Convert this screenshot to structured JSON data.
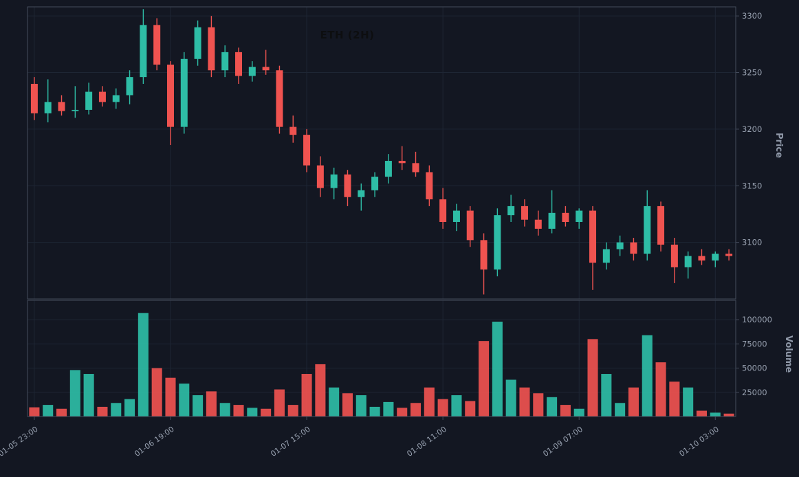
{
  "title": "ETH (2H)",
  "axes": {
    "price_label": "Price",
    "volume_label": "Volume"
  },
  "colors": {
    "background": "#131722",
    "up": "#2ebda6",
    "down": "#ef5350",
    "grid": "#1e2634",
    "border": "#454c5c",
    "tick_label": "#98a1b0",
    "axis_title": "#8f98a8",
    "title_color": "#0d0e10"
  },
  "chart_data": {
    "type": "candlestick",
    "title": "ETH (2H)",
    "legend": "none",
    "grid": "on",
    "x_tick_labels": [
      "01-05 23:00",
      "01-06 19:00",
      "01-07 15:00",
      "01-08 11:00",
      "01-09 07:00",
      "01-10 03:00"
    ],
    "x_tick_indices": [
      0,
      10,
      20,
      30,
      40,
      50
    ],
    "price_ticks": [
      3300,
      3250,
      3200,
      3150,
      3100
    ],
    "volume_ticks": [
      100000,
      75000,
      50000,
      25000
    ],
    "ylim_price": [
      3050,
      3308
    ],
    "ylim_volume": [
      0,
      120000
    ],
    "ohlcv_columns": [
      "time",
      "open",
      "high",
      "low",
      "close",
      "volume"
    ],
    "ohlcv": [
      [
        "01-05 23:00",
        3240,
        3246,
        3208,
        3214,
        9500
      ],
      [
        "01-06 01:00",
        3214,
        3244,
        3206,
        3224,
        12000
      ],
      [
        "01-06 03:00",
        3224,
        3230,
        3212,
        3216,
        8000
      ],
      [
        "01-06 05:00",
        3216,
        3238,
        3210,
        3217,
        48000
      ],
      [
        "01-06 07:00",
        3217,
        3241,
        3213,
        3233,
        44000
      ],
      [
        "01-06 09:00",
        3233,
        3238,
        3220,
        3224,
        10000
      ],
      [
        "01-06 11:00",
        3224,
        3236,
        3218,
        3230,
        14000
      ],
      [
        "01-06 13:00",
        3230,
        3252,
        3222,
        3246,
        18000
      ],
      [
        "01-06 15:00",
        3246,
        3306,
        3240,
        3292,
        107000
      ],
      [
        "01-06 17:00",
        3292,
        3298,
        3252,
        3257,
        50000
      ],
      [
        "01-06 19:00",
        3257,
        3260,
        3186,
        3202,
        40000
      ],
      [
        "01-06 21:00",
        3202,
        3268,
        3196,
        3262,
        34000
      ],
      [
        "01-06 23:00",
        3262,
        3296,
        3256,
        3290,
        22000
      ],
      [
        "01-07 01:00",
        3290,
        3300,
        3246,
        3252,
        26000
      ],
      [
        "01-07 03:00",
        3252,
        3274,
        3246,
        3268,
        14000
      ],
      [
        "01-07 05:00",
        3268,
        3272,
        3240,
        3247,
        12000
      ],
      [
        "01-07 07:00",
        3247,
        3260,
        3242,
        3255,
        9000
      ],
      [
        "01-07 09:00",
        3255,
        3270,
        3248,
        3252,
        8000
      ],
      [
        "01-07 11:00",
        3252,
        3256,
        3196,
        3202,
        28000
      ],
      [
        "01-07 13:00",
        3202,
        3212,
        3188,
        3195,
        12000
      ],
      [
        "01-07 15:00",
        3195,
        3200,
        3162,
        3168,
        44000
      ],
      [
        "01-07 17:00",
        3168,
        3176,
        3140,
        3148,
        54000
      ],
      [
        "01-07 19:00",
        3148,
        3166,
        3138,
        3160,
        30000
      ],
      [
        "01-07 21:00",
        3160,
        3164,
        3132,
        3140,
        24000
      ],
      [
        "01-07 23:00",
        3140,
        3152,
        3128,
        3146,
        22000
      ],
      [
        "01-08 01:00",
        3146,
        3162,
        3140,
        3158,
        10000
      ],
      [
        "01-08 03:00",
        3158,
        3178,
        3152,
        3172,
        15000
      ],
      [
        "01-08 05:00",
        3172,
        3185,
        3164,
        3170,
        9000
      ],
      [
        "01-08 07:00",
        3170,
        3180,
        3158,
        3162,
        14000
      ],
      [
        "01-08 09:00",
        3162,
        3168,
        3132,
        3138,
        30000
      ],
      [
        "01-08 11:00",
        3138,
        3148,
        3112,
        3118,
        18000
      ],
      [
        "01-08 13:00",
        3118,
        3134,
        3110,
        3128,
        22000
      ],
      [
        "01-08 15:00",
        3128,
        3132,
        3096,
        3102,
        16000
      ],
      [
        "01-08 17:00",
        3102,
        3108,
        3054,
        3076,
        78000
      ],
      [
        "01-08 19:00",
        3076,
        3130,
        3070,
        3124,
        98000
      ],
      [
        "01-08 21:00",
        3124,
        3142,
        3118,
        3132,
        38000
      ],
      [
        "01-08 23:00",
        3132,
        3138,
        3114,
        3120,
        30000
      ],
      [
        "01-09 01:00",
        3120,
        3128,
        3106,
        3112,
        24000
      ],
      [
        "01-09 03:00",
        3112,
        3146,
        3108,
        3126,
        20000
      ],
      [
        "01-09 05:00",
        3126,
        3132,
        3114,
        3118,
        12000
      ],
      [
        "01-09 07:00",
        3118,
        3130,
        3112,
        3128,
        8000
      ],
      [
        "01-09 09:00",
        3128,
        3132,
        3058,
        3082,
        80000
      ],
      [
        "01-09 11:00",
        3082,
        3100,
        3076,
        3094,
        44000
      ],
      [
        "01-09 13:00",
        3094,
        3106,
        3088,
        3100,
        14000
      ],
      [
        "01-09 15:00",
        3100,
        3104,
        3084,
        3090,
        30000
      ],
      [
        "01-09 17:00",
        3090,
        3146,
        3084,
        3132,
        84000
      ],
      [
        "01-09 19:00",
        3132,
        3136,
        3092,
        3098,
        56000
      ],
      [
        "01-09 21:00",
        3098,
        3104,
        3064,
        3078,
        36000
      ],
      [
        "01-09 23:00",
        3078,
        3092,
        3068,
        3088,
        30000
      ],
      [
        "01-10 01:00",
        3088,
        3094,
        3080,
        3084,
        6000
      ],
      [
        "01-10 03:00",
        3084,
        3092,
        3078,
        3090,
        4000
      ],
      [
        "01-10 05:00",
        3090,
        3094,
        3084,
        3088,
        3000
      ]
    ]
  }
}
